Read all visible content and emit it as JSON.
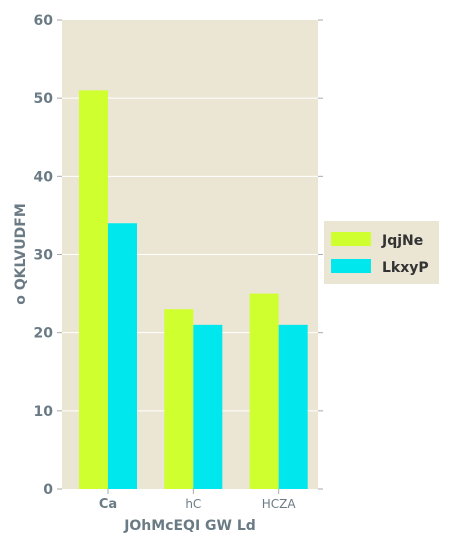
{
  "chart_data": {
    "type": "bar",
    "categories": [
      "Ca",
      "hC",
      "HCZA"
    ],
    "series": [
      {
        "name": "JqjNe",
        "values": [
          51,
          23,
          25
        ],
        "color": "#cfff2e"
      },
      {
        "name": "LkxyP",
        "values": [
          34,
          21,
          21
        ],
        "color": "#00e8ee"
      }
    ],
    "xlabel": "JOhMcEQI GW Ld",
    "ylabel": "o QKLVUDFM",
    "ylim": [
      0,
      60
    ],
    "yticks": [
      0,
      10,
      20,
      30,
      40,
      50,
      60
    ],
    "grid": true,
    "legend": "outside-right",
    "plot_background": "#ebe5d3",
    "grid_color": "#ffffff",
    "label_color": "#6b7b85"
  }
}
